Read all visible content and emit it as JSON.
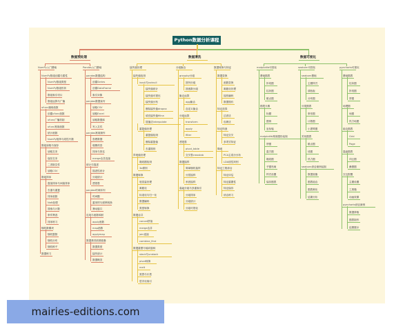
{
  "title": "Python数据分析课程",
  "colors": {
    "branch1": "#d9826a",
    "branch2": "#e6c344",
    "branch3": "#8cc06a",
    "title_bg": "#135d5e",
    "background": "#fdf6dc"
  },
  "branches": [
    {
      "label": "数据预处理",
      "subs": [
        {
          "label": "NumPy入门基础",
          "items": [
            {
              "t": "NumPy数组创建与属性",
              "d": 1
            },
            {
              "t": "NumPy数组类型",
              "d": 2
            },
            {
              "t": "NumPy数组形状",
              "d": 2
            },
            {
              "t": "数组索引切片",
              "d": 2
            },
            {
              "t": "数组运算与广播",
              "d": 2
            },
            {
              "t": "ufunc通用函数",
              "d": 1
            },
            {
              "t": "创建ufunc函数",
              "d": 2
            },
            {
              "t": "ufunc广播机制",
              "d": 2
            },
            {
              "t": "ufunc常用函数",
              "d": 2
            },
            {
              "t": "统计函数",
              "d": 2
            },
            {
              "t": "NumPy矩阵与线性代数",
              "d": 2
            },
            {
              "t": "数组读取与保存",
              "d": 1
            },
            {
              "t": "读取文本",
              "d": 2
            },
            {
              "t": "保存文本",
              "d": 2
            },
            {
              "t": "二进制文件",
              "d": 2
            },
            {
              "t": "读取CSV",
              "d": 2
            },
            {
              "t": "数组排序",
              "d": 1
            },
            {
              "t": "直接排序与间接排序",
              "d": 2
            },
            {
              "t": "去重与重复",
              "d": 2
            },
            {
              "t": "排序函数",
              "d": 2
            },
            {
              "t": "NaN处理",
              "d": 2
            },
            {
              "t": "搜索与计数",
              "d": 2
            },
            {
              "t": "条件筛选",
              "d": 2
            },
            {
              "t": "排序练习",
              "d": 2
            },
            {
              "t": "随机数模块",
              "d": 1
            },
            {
              "t": "随机整数",
              "d": 2
            },
            {
              "t": "随机分布",
              "d": 2
            },
            {
              "t": "随机种子",
              "d": 2
            },
            {
              "t": "数据练习",
              "d": 1
            }
          ]
        },
        {
          "label": "Pandas入门基础",
          "items": [
            {
              "t": "pandas数据结构",
              "d": 1
            },
            {
              "t": "创建Series",
              "d": 2
            },
            {
              "t": "创建DataFrame",
              "d": 2
            },
            {
              "t": "索引对象",
              "d": 2
            },
            {
              "t": "pandas数据读写",
              "d": 1
            },
            {
              "t": "读取CSV",
              "d": 2
            },
            {
              "t": "读取Excel",
              "d": 2
            },
            {
              "t": "读取数据库",
              "d": 2
            },
            {
              "t": "写入文件",
              "d": 2
            },
            {
              "t": "pandas常用操作",
              "d": 1
            },
            {
              "t": "查看数据",
              "d": 2
            },
            {
              "t": "增删改查",
              "d": 2
            },
            {
              "t": "排序与排名",
              "d": 2
            },
            {
              "t": "merge合并连接",
              "d": 2
            },
            {
              "t": "统计与描述",
              "d": 1
            },
            {
              "t": "描述性统计",
              "d": 2
            },
            {
              "t": "分组统计",
              "d": 2
            },
            {
              "t": "透视表",
              "d": 2
            },
            {
              "t": "pandas时间序列",
              "d": 1
            },
            {
              "t": "时间戳",
              "d": 2
            },
            {
              "t": "重采样与频率转换",
              "d": 2
            },
            {
              "t": "滑动窗口",
              "d": 2
            },
            {
              "t": "应用与函数映射",
              "d": 1
            },
            {
              "t": "apply函数",
              "d": 2
            },
            {
              "t": "map函数",
              "d": 2
            },
            {
              "t": "applymap",
              "d": 2
            },
            {
              "t": "数据清洗前期准备",
              "d": 1
            },
            {
              "t": "数据类型",
              "d": 2
            },
            {
              "t": "缺失统计",
              "d": 2
            },
            {
              "t": "数据概览",
              "d": 2
            }
          ]
        }
      ]
    },
    {
      "label": "数据清洗",
      "subs": [
        {
          "label": "缺失值处理",
          "items": [
            {
              "t": "缺失值检测",
              "d": 1
            },
            {
              "t": "isnull与notnull",
              "d": 2
            },
            {
              "t": "缺失值统计",
              "d": 3
            },
            {
              "t": "缺失值可视化",
              "d": 3
            },
            {
              "t": "缺失值分布",
              "d": 3
            },
            {
              "t": "删除缺失值dropna",
              "d": 3
            },
            {
              "t": "填充缺失值fillna",
              "d": 3
            },
            {
              "t": "插值法interpolate",
              "d": 3
            },
            {
              "t": "重复值处理",
              "d": 2
            },
            {
              "t": "重复值检测",
              "d": 3
            },
            {
              "t": "删除重复值",
              "d": 3
            },
            {
              "t": "去重规则",
              "d": 3
            },
            {
              "t": "异常值处理",
              "d": 1
            },
            {
              "t": "箱线图检测",
              "d": 2
            },
            {
              "t": "3σ原则",
              "d": 2
            },
            {
              "t": "数据转换",
              "d": 1
            },
            {
              "t": "哑变量处理",
              "d": 2
            },
            {
              "t": "离散化",
              "d": 2
            },
            {
              "t": "标准化与归一化",
              "d": 2
            },
            {
              "t": "数据编码",
              "d": 2
            },
            {
              "t": "类型转换",
              "d": 2
            },
            {
              "t": "数据合并",
              "d": 1
            },
            {
              "t": "concat拼接",
              "d": 2
            },
            {
              "t": "merge合并",
              "d": 2
            },
            {
              "t": "join连接",
              "d": 2
            },
            {
              "t": "combine_first",
              "d": 2
            },
            {
              "t": "数据重塑与轴向旋转",
              "d": 1
            },
            {
              "t": "stack与unstack",
              "d": 2
            },
            {
              "t": "pivot转换",
              "d": 2
            },
            {
              "t": "melt",
              "d": 2
            },
            {
              "t": "宽表与长表",
              "d": 2
            },
            {
              "t": "层次化索引",
              "d": 2
            }
          ]
        },
        {
          "label": "分组聚合",
          "items": [
            {
              "t": "groupby分组",
              "d": 1
            },
            {
              "t": "按列分组",
              "d": 2
            },
            {
              "t": "按函数分组",
              "d": 2
            },
            {
              "t": "聚合运算",
              "d": 1
            },
            {
              "t": "agg聚合",
              "d": 2
            },
            {
              "t": "自定义聚合",
              "d": 2
            },
            {
              "t": "分组运算",
              "d": 1
            },
            {
              "t": "transform",
              "d": 2
            },
            {
              "t": "apply",
              "d": 2
            },
            {
              "t": "filter",
              "d": 2
            },
            {
              "t": "透视表",
              "d": 1
            },
            {
              "t": "pivot_table",
              "d": 2
            },
            {
              "t": "交叉表crosstab",
              "d": 2
            },
            {
              "t": "数据抽样",
              "d": 1
            },
            {
              "t": "简单随机抽样",
              "d": 2
            },
            {
              "t": "分层抽样",
              "d": 2
            },
            {
              "t": "系统抽样",
              "d": 2
            },
            {
              "t": "高级分组与多重索引",
              "d": 1
            },
            {
              "t": "分组排序",
              "d": 2
            },
            {
              "t": "分组统计",
              "d": 2
            },
            {
              "t": "分组可视化",
              "d": 2
            }
          ]
        },
        {
          "label": "数据转换与特征",
          "items": [
            {
              "t": "数据变换",
              "d": 1
            },
            {
              "t": "函数变换",
              "d": 2
            },
            {
              "t": "离散化处理",
              "d": 2
            },
            {
              "t": "独热编码",
              "d": 2
            },
            {
              "t": "数据规约",
              "d": 2
            },
            {
              "t": "特征选择",
              "d": 1
            },
            {
              "t": "过滤法",
              "d": 2
            },
            {
              "t": "包裹法",
              "d": 2
            },
            {
              "t": "特征构造",
              "d": 1
            },
            {
              "t": "特征交叉",
              "d": 2
            },
            {
              "t": "多项式特征",
              "d": 2
            },
            {
              "t": "降维",
              "d": 1
            },
            {
              "t": "PCA主成分分析",
              "d": 2
            },
            {
              "t": "LDA线性判别",
              "d": 2
            },
            {
              "t": "特征工程综合",
              "d": 1
            },
            {
              "t": "特征评估",
              "d": 2
            },
            {
              "t": "特征重要性",
              "d": 2
            },
            {
              "t": "特征保存",
              "d": 2
            },
            {
              "t": "综合练习",
              "d": 2
            }
          ]
        }
      ]
    },
    {
      "label": "数据可视化",
      "subs": [
        {
          "label": "matplotlib可视化",
          "items": [
            {
              "t": "基础图表",
              "d": 1
            },
            {
              "t": "折线图",
              "d": 2
            },
            {
              "t": "柱状图",
              "d": 2
            },
            {
              "t": "散点图",
              "d": 2
            },
            {
              "t": "图表元素",
              "d": 1
            },
            {
              "t": "标题",
              "d": 2
            },
            {
              "t": "图例",
              "d": 2
            },
            {
              "t": "坐标轴",
              "d": 2
            },
            {
              "t": "matplotlib常用图形绘制",
              "d": 1
            },
            {
              "t": "饼图",
              "d": 2
            },
            {
              "t": "直方图",
              "d": 2
            },
            {
              "t": "箱线图",
              "d": 2
            },
            {
              "t": "子图布局",
              "d": 2
            },
            {
              "t": "样式设置",
              "d": 2
            },
            {
              "t": "保存图表",
              "d": 2
            }
          ]
        },
        {
          "label": "seaborn可视化",
          "items": [
            {
              "t": "seaborn基础",
              "d": 1
            },
            {
              "t": "主题样式",
              "d": 2
            },
            {
              "t": "调色板",
              "d": 2
            },
            {
              "t": "分布图",
              "d": 2
            },
            {
              "t": "分类图表",
              "d": 1
            },
            {
              "t": "条形图",
              "d": 2
            },
            {
              "t": "计数图",
              "d": 2
            },
            {
              "t": "小提琴图",
              "d": 2
            },
            {
              "t": "关系图表",
              "d": 1
            },
            {
              "t": "散点图",
              "d": 2
            },
            {
              "t": "线图",
              "d": 2
            },
            {
              "t": "热力图",
              "d": 2
            },
            {
              "t": "seaborn综合案例绘制",
              "d": 1
            },
            {
              "t": "数据准备",
              "d": 2
            },
            {
              "t": "图表组合",
              "d": 2
            },
            {
              "t": "图表美化",
              "d": 2
            },
            {
              "t": "结果分析",
              "d": 2
            }
          ]
        },
        {
          "label": "pyecharts可视化",
          "items": [
            {
              "t": "基础图表",
              "d": 1
            },
            {
              "t": "柱状图",
              "d": 2
            },
            {
              "t": "折线图",
              "d": 2
            },
            {
              "t": "饼图",
              "d": 2
            },
            {
              "t": "地理图",
              "d": 1
            },
            {
              "t": "地图",
              "d": 2
            },
            {
              "t": "热力地图",
              "d": 2
            },
            {
              "t": "组合图表",
              "d": 1
            },
            {
              "t": "Grid",
              "d": 2
            },
            {
              "t": "Page",
              "d": 2
            },
            {
              "t": "高级图表",
              "d": 1
            },
            {
              "t": "词云图",
              "d": 2
            },
            {
              "t": "桑基图",
              "d": 2
            },
            {
              "t": "交互配置",
              "d": 1
            },
            {
              "t": "主题设置",
              "d": 2
            },
            {
              "t": "工具箱",
              "d": 2
            },
            {
              "t": "动画效果",
              "d": 2
            },
            {
              "t": "pyecharts综合案例",
              "d": 1
            },
            {
              "t": "数据获取",
              "d": 2
            },
            {
              "t": "图表制作",
              "d": 2
            },
            {
              "t": "结果展示",
              "d": 2
            }
          ]
        }
      ]
    }
  ],
  "watermark": "mairies-editions.com"
}
